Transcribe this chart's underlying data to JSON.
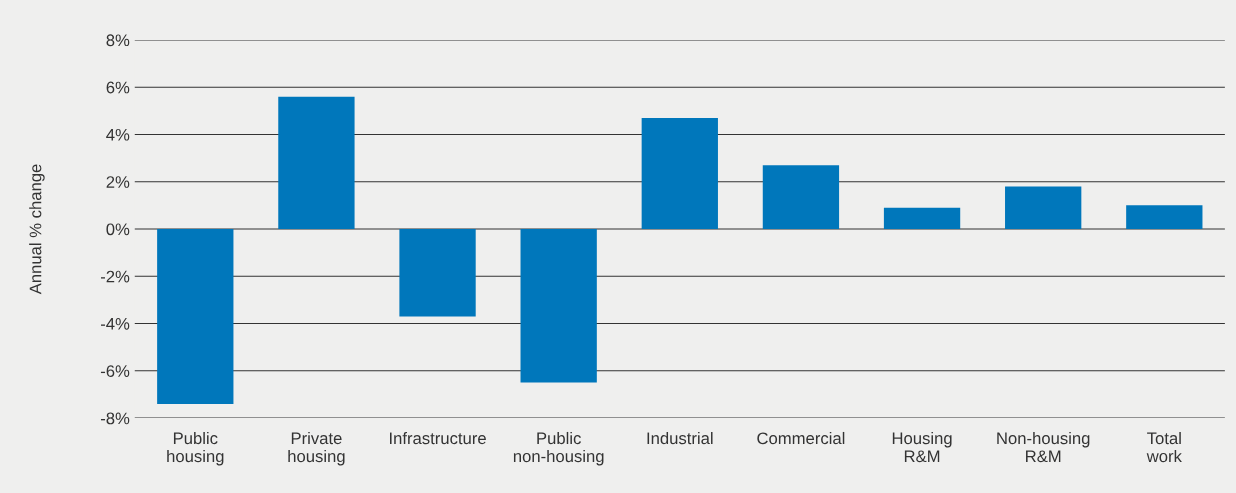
{
  "chart_data": {
    "type": "bar",
    "ylabel": "Annual % change",
    "categories": [
      "Public\nhousing",
      "Private\nhousing",
      "Infrastructure",
      "Public\nnon-housing",
      "Industrial",
      "Commercial",
      "Housing\nR&M",
      "Non-housing\nR&M",
      "Total\nwork"
    ],
    "values": [
      -7.4,
      5.6,
      -3.7,
      -6.5,
      4.7,
      2.7,
      0.9,
      1.8,
      1.0
    ],
    "color": "#0077bb",
    "ylim": [
      -8,
      8
    ],
    "yticks": [
      {
        "value": -8,
        "label": "-8%"
      },
      {
        "value": -6,
        "label": "-6%"
      },
      {
        "value": -4,
        "label": "-4%"
      },
      {
        "value": -2,
        "label": "-2%"
      },
      {
        "value": 0,
        "label": "0%"
      },
      {
        "value": 2,
        "label": "2%"
      },
      {
        "value": 4,
        "label": "4%"
      },
      {
        "value": 6,
        "label": "6%"
      },
      {
        "value": 8,
        "label": "8%"
      }
    ],
    "grid": "y",
    "legend": false
  }
}
